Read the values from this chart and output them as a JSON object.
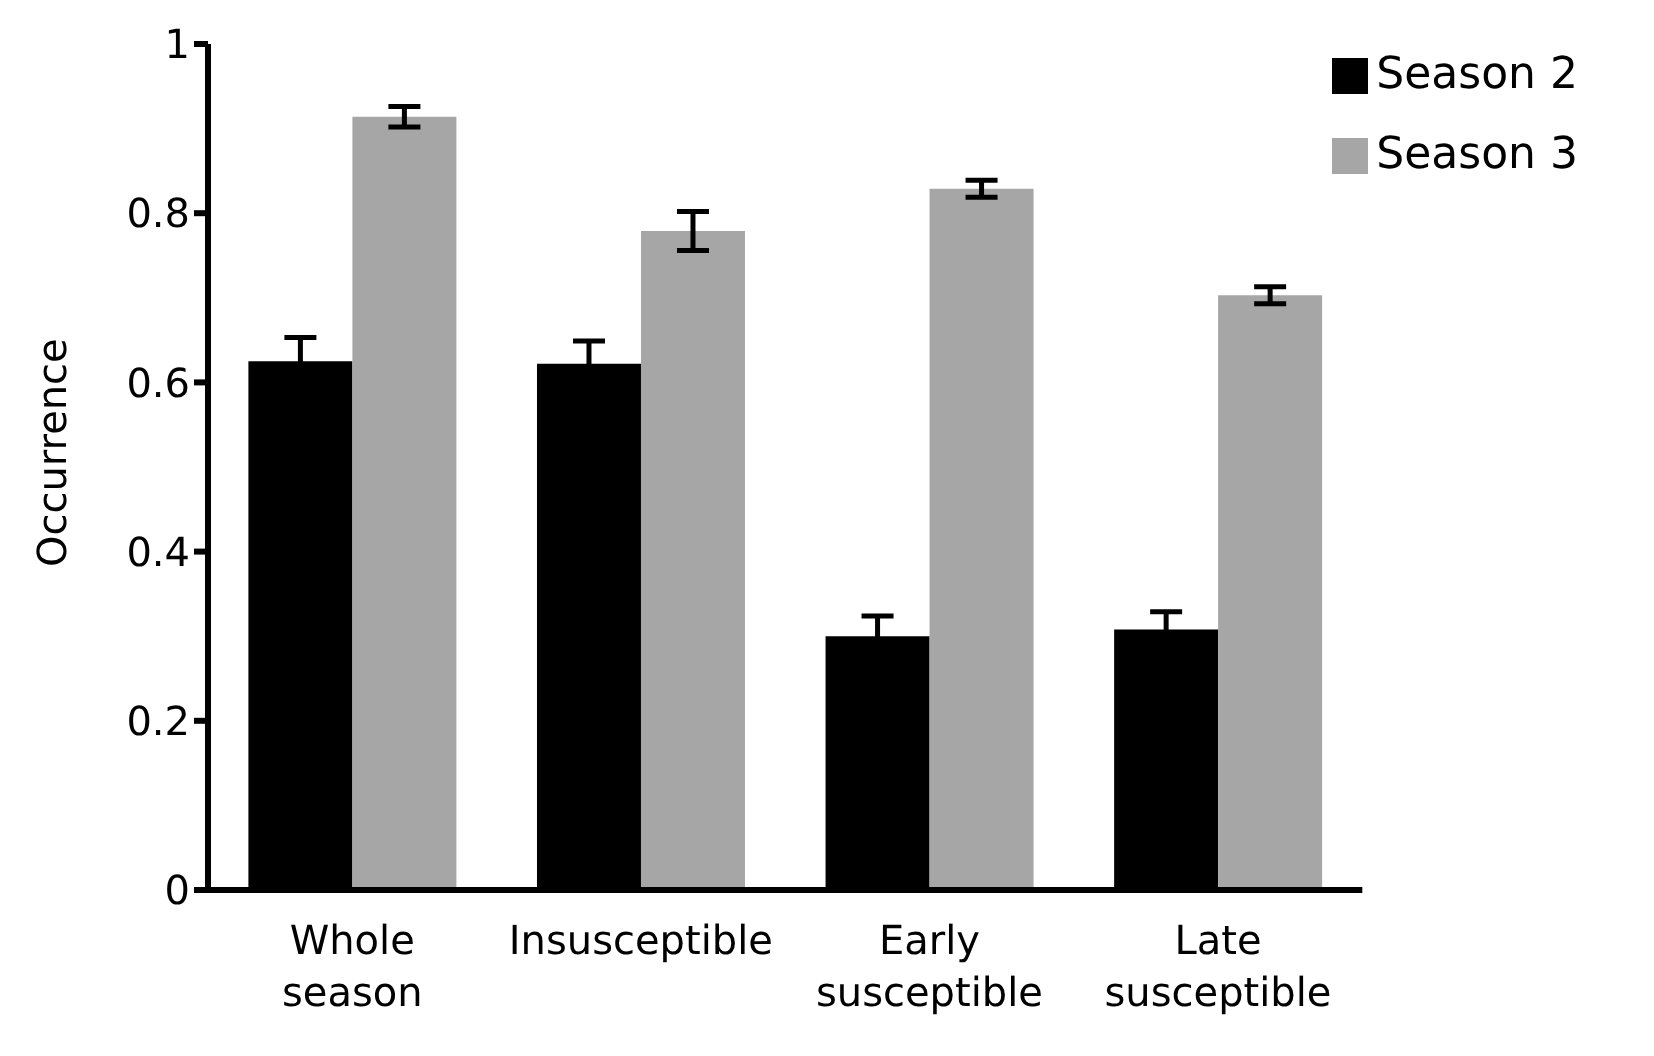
{
  "chart_data": {
    "type": "bar",
    "ylabel": "Occurrence",
    "categories": [
      "Whole season",
      "Insusceptible",
      "Early susceptible",
      "Late susceptible"
    ],
    "series": [
      {
        "name": "Season 2",
        "color": "#000000",
        "values": [
          0.625,
          0.622,
          0.3,
          0.308
        ],
        "errors": [
          0.028,
          0.027,
          0.024,
          0.021
        ]
      },
      {
        "name": "Season 3",
        "color": "#a6a6a6",
        "values": [
          0.914,
          0.779,
          0.829,
          0.703
        ],
        "errors": [
          0.012,
          0.023,
          0.01,
          0.01
        ]
      }
    ],
    "ylim": [
      0,
      1
    ],
    "yticks": [
      0,
      0.2,
      0.4,
      0.6,
      0.8,
      1
    ],
    "grid": false,
    "legend": "top right"
  }
}
